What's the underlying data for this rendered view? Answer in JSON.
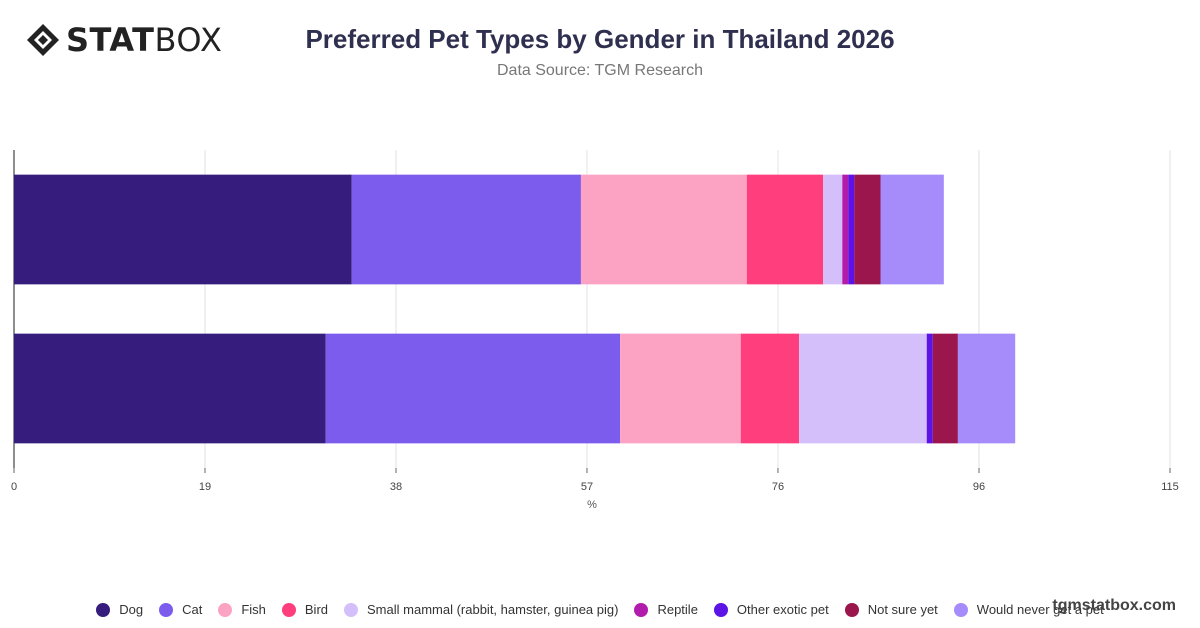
{
  "brand": {
    "logo_bold": "STAT",
    "logo_light": "BOX"
  },
  "title": "Preferred Pet Types by Gender in Thailand 2026",
  "subtitle": "Data Source: TGM Research",
  "watermark": "tgmstatbox.com",
  "chart_data": {
    "type": "bar",
    "orientation": "horizontal",
    "stacked": true,
    "title": "Preferred Pet Types by Gender in Thailand 2026",
    "subtitle": "Data Source: TGM Research",
    "xlabel": "%",
    "ylabel": "",
    "xlim": [
      0,
      115
    ],
    "x_ticks": [
      0,
      19,
      38,
      57,
      76,
      96,
      115
    ],
    "categories": [
      "",
      ""
    ],
    "grid": true,
    "legend_position": "bottom",
    "series": [
      {
        "name": "Dog",
        "color": "#361c7c",
        "values": [
          33.6,
          31.0
        ]
      },
      {
        "name": "Cat",
        "color": "#7b5cec",
        "values": [
          22.8,
          29.3
        ]
      },
      {
        "name": "Fish",
        "color": "#fca3c4",
        "values": [
          16.5,
          12.0
        ]
      },
      {
        "name": "Bird",
        "color": "#fe3e7d",
        "values": [
          7.6,
          5.8
        ]
      },
      {
        "name": "Small mammal (rabbit, hamster, guinea pig)",
        "color": "#d5bffb",
        "values": [
          1.9,
          12.7
        ]
      },
      {
        "name": "Reptile",
        "color": "#b21cac",
        "values": [
          0.6,
          0.0
        ]
      },
      {
        "name": "Other exotic pet",
        "color": "#5b13e6",
        "values": [
          0.6,
          0.6
        ]
      },
      {
        "name": "Not sure yet",
        "color": "#9a164d",
        "values": [
          2.6,
          2.5
        ]
      },
      {
        "name": "Would never get a pet",
        "color": "#a68bfb",
        "values": [
          6.3,
          5.7
        ]
      }
    ]
  }
}
